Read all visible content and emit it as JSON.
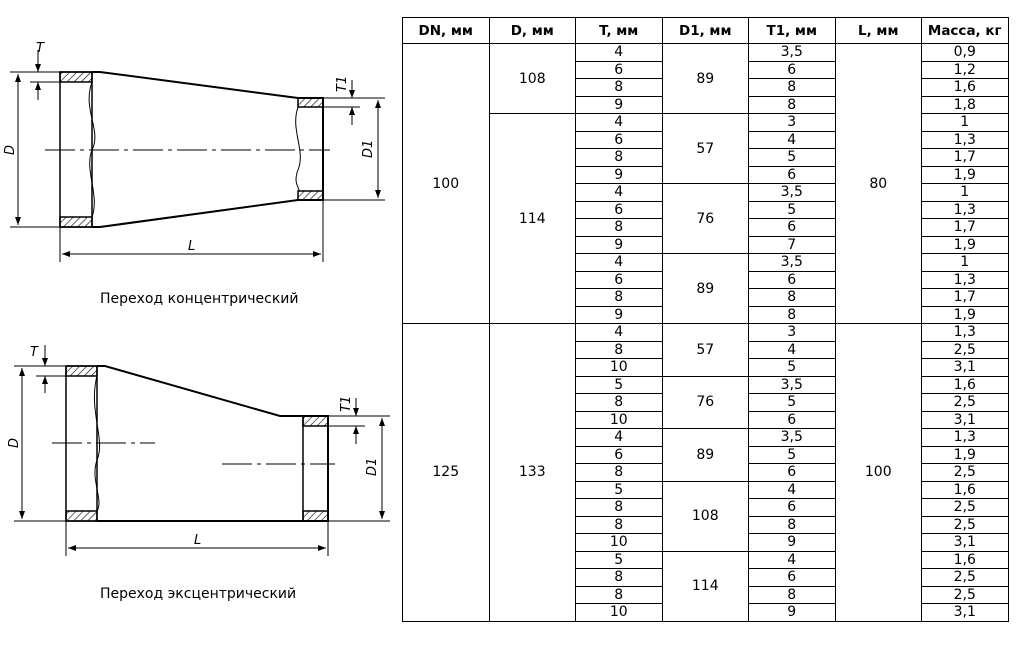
{
  "drawings": {
    "concentric": {
      "caption": "Переход концентрический",
      "labels": {
        "T": "T",
        "T1": "T1",
        "D": "D",
        "D1": "D1",
        "L": "L"
      }
    },
    "eccentric": {
      "caption": "Переход эксцентрический",
      "labels": {
        "T": "T",
        "T1": "T1",
        "D": "D",
        "D1": "D1",
        "L": "L"
      }
    }
  },
  "table": {
    "headers": [
      "DN, мм",
      "D, мм",
      "T, мм",
      "D1, мм",
      "T1, мм",
      "L, мм",
      "Масса, кг"
    ],
    "groups": [
      {
        "DN": "100",
        "L": "80",
        "D_groups": [
          {
            "D": "108",
            "D1_groups": [
              {
                "D1": "89",
                "rows": [
                  [
                    "4",
                    "3,5",
                    "0,9"
                  ],
                  [
                    "6",
                    "6",
                    "1,2"
                  ],
                  [
                    "8",
                    "8",
                    "1,6"
                  ],
                  [
                    "9",
                    "8",
                    "1,8"
                  ]
                ]
              }
            ]
          },
          {
            "D": "114",
            "D1_groups": [
              {
                "D1": "57",
                "rows": [
                  [
                    "4",
                    "3",
                    "1"
                  ],
                  [
                    "6",
                    "4",
                    "1,3"
                  ],
                  [
                    "8",
                    "5",
                    "1,7"
                  ],
                  [
                    "9",
                    "6",
                    "1,9"
                  ]
                ]
              },
              {
                "D1": "76",
                "rows": [
                  [
                    "4",
                    "3,5",
                    "1"
                  ],
                  [
                    "6",
                    "5",
                    "1,3"
                  ],
                  [
                    "8",
                    "6",
                    "1,7"
                  ],
                  [
                    "9",
                    "7",
                    "1,9"
                  ]
                ]
              },
              {
                "D1": "89",
                "rows": [
                  [
                    "4",
                    "3,5",
                    "1"
                  ],
                  [
                    "6",
                    "6",
                    "1,3"
                  ],
                  [
                    "8",
                    "8",
                    "1,7"
                  ],
                  [
                    "9",
                    "8",
                    "1,9"
                  ]
                ]
              }
            ]
          }
        ]
      },
      {
        "DN": "125",
        "L": "100",
        "D_groups": [
          {
            "D": "133",
            "D1_groups": [
              {
                "D1": "57",
                "rows": [
                  [
                    "4",
                    "3",
                    "1,3"
                  ],
                  [
                    "8",
                    "4",
                    "2,5"
                  ],
                  [
                    "10",
                    "5",
                    "3,1"
                  ]
                ]
              },
              {
                "D1": "76",
                "rows": [
                  [
                    "5",
                    "3,5",
                    "1,6"
                  ],
                  [
                    "8",
                    "5",
                    "2,5"
                  ],
                  [
                    "10",
                    "6",
                    "3,1"
                  ]
                ]
              },
              {
                "D1": "89",
                "rows": [
                  [
                    "4",
                    "3,5",
                    "1,3"
                  ],
                  [
                    "6",
                    "5",
                    "1,9"
                  ],
                  [
                    "8",
                    "6",
                    "2,5"
                  ]
                ]
              },
              {
                "D1": "108",
                "rows": [
                  [
                    "5",
                    "4",
                    "1,6"
                  ],
                  [
                    "8",
                    "6",
                    "2,5"
                  ],
                  [
                    "8",
                    "8",
                    "2,5"
                  ],
                  [
                    "10",
                    "9",
                    "3,1"
                  ]
                ]
              },
              {
                "D1": "114",
                "rows": [
                  [
                    "5",
                    "4",
                    "1,6"
                  ],
                  [
                    "8",
                    "6",
                    "2,5"
                  ],
                  [
                    "8",
                    "8",
                    "2,5"
                  ],
                  [
                    "10",
                    "9",
                    "3,1"
                  ]
                ]
              }
            ]
          }
        ]
      }
    ]
  }
}
